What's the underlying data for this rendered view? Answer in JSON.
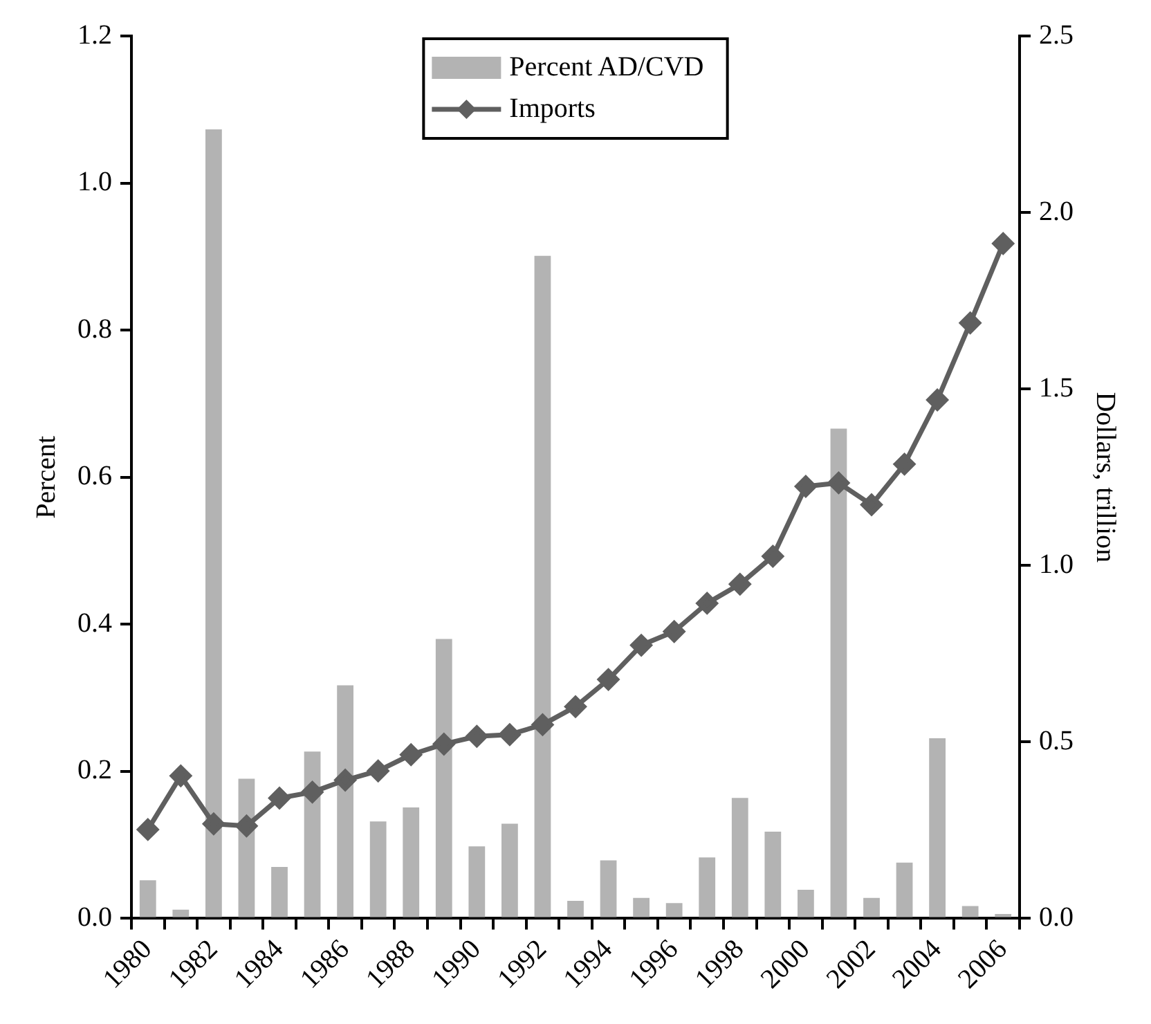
{
  "chart_data": {
    "type": "bar",
    "categories": [
      "1980",
      null,
      "1982",
      null,
      "1984",
      null,
      "1986",
      null,
      "1988",
      null,
      "1990",
      null,
      "1992",
      null,
      "1994",
      null,
      "1996",
      null,
      "1998",
      null,
      "2000",
      null,
      "2002",
      null,
      "2004",
      null,
      "2006"
    ],
    "series": [
      {
        "name": "Percent AD/CVD",
        "color": "#b3b3b3",
        "values": [
          0.052,
          0.012,
          1.073,
          0.19,
          0.07,
          0.227,
          0.317,
          0.132,
          0.151,
          0.38,
          0.098,
          0.129,
          0.901,
          0.024,
          0.079,
          0.028,
          0.021,
          0.083,
          0.164,
          0.118,
          0.039,
          0.666,
          0.028,
          0.076,
          0.245,
          0.017,
          0.006
        ]
      },
      {
        "name": "Imports",
        "type": "line",
        "axis": "y2",
        "color": "#5f5f5f",
        "values": [
          0.252,
          0.404,
          0.268,
          0.262,
          0.341,
          0.358,
          0.392,
          0.418,
          0.464,
          0.494,
          0.516,
          0.521,
          0.549,
          0.6,
          0.677,
          0.774,
          0.813,
          0.893,
          0.947,
          1.026,
          1.224,
          1.234,
          1.172,
          1.287,
          1.469,
          1.687,
          1.912
        ]
      }
    ],
    "marker": "diamond",
    "ylabel": "Percent",
    "y2label": "Dollars, trillion",
    "ylim": [
      0,
      1.2
    ],
    "yticks": [
      {
        "value": 0,
        "label": "0.0"
      },
      0.2,
      0.4,
      0.6,
      0.8,
      {
        "value": 1,
        "label": "1.0"
      },
      1.2
    ],
    "y2lim": [
      0,
      2.5
    ],
    "y2ticks": [
      {
        "value": 0,
        "label": "0.0"
      },
      0.5,
      {
        "value": 1,
        "label": "1.0"
      },
      1.5,
      {
        "value": 2,
        "label": "2.0"
      },
      2.5
    ],
    "legend": "top",
    "grid": false
  }
}
